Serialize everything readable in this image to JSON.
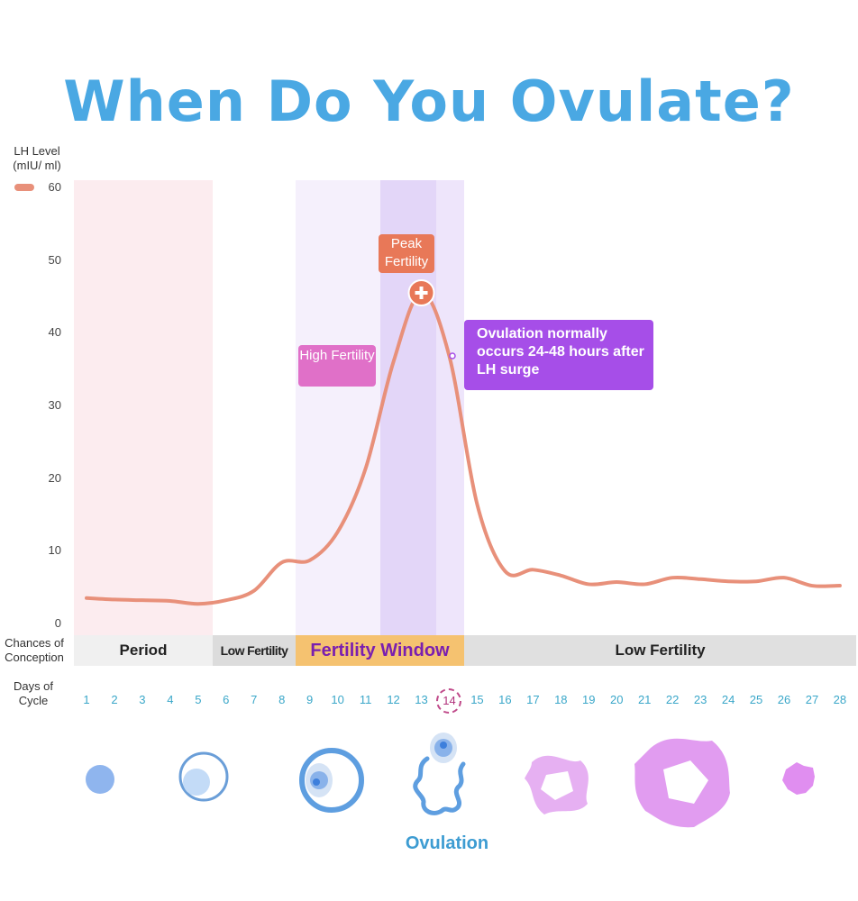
{
  "title": "When Do You Ovulate?",
  "ovulation_label": "Ovulation",
  "chart_data": {
    "type": "line",
    "title": "When Do You Ovulate?",
    "ylabel": "LH Level (mIU/ ml)",
    "xlabel": "Days of Cycle",
    "legend": "top-left",
    "ylim": [
      0,
      60
    ],
    "yticks": [
      "0",
      "10",
      "20",
      "30",
      "40",
      "50",
      "60"
    ],
    "x": [
      1,
      2,
      3,
      4,
      5,
      6,
      7,
      8,
      9,
      10,
      11,
      12,
      13,
      14,
      15,
      16,
      17,
      18,
      19,
      20,
      21,
      22,
      23,
      24,
      25,
      26,
      27,
      28
    ],
    "xtick_labels": [
      "1",
      "2",
      "3",
      "4",
      "5",
      "6",
      "7",
      "8",
      "9",
      "10",
      "11",
      "12",
      "13",
      "14",
      "15",
      "16",
      "17",
      "18",
      "19",
      "20",
      "21",
      "22",
      "23",
      "24",
      "25",
      "26",
      "27",
      "28"
    ],
    "highlighted_day": "14",
    "series": [
      {
        "name": "LH Level",
        "color": "#e8907a",
        "values": [
          3.5,
          3.3,
          3.2,
          3.1,
          2.7,
          3.2,
          4.5,
          8.4,
          8.7,
          12.6,
          21.3,
          36,
          45.5,
          36.8,
          16.4,
          7.2,
          7.4,
          6.6,
          5.4,
          5.7,
          5.4,
          6.3,
          6.1,
          5.8,
          5.8,
          6.3,
          5.2,
          5.2
        ]
      }
    ],
    "y_axis_title": "LH Level",
    "y_axis_unit": "(mIU/ ml)",
    "x_axis_title": [
      "Days of",
      "Cycle"
    ],
    "conception_title": [
      "Chances of",
      "Conception"
    ],
    "annotations": {
      "peak": "Peak Fertility",
      "high": "High Fertility",
      "ovulation_note": "Ovulation normally occurs 24-48 hours after LH surge"
    },
    "bands": [
      {
        "label": "Period",
        "from": 1,
        "to": 5.5,
        "color": "#f0f0f0"
      },
      {
        "label": "Low Fertility",
        "from": 5.5,
        "to": 8.5,
        "color": "#dcdcdc"
      },
      {
        "label": "Fertility Window",
        "from": 8.5,
        "to": 14.5,
        "color": "#f5c270"
      },
      {
        "label": "Low Fertility",
        "from": 14.5,
        "to": 28.5,
        "color": "#e0e0e0"
      }
    ]
  }
}
